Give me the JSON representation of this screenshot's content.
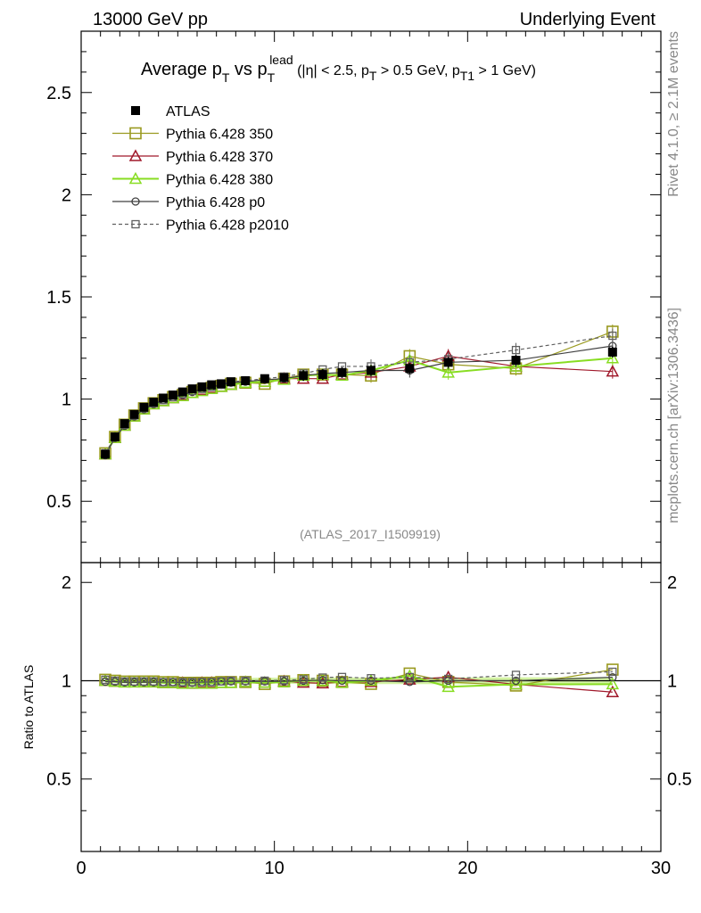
{
  "header": {
    "left": "13000 GeV pp",
    "right": "Underlying Event"
  },
  "side_labels": {
    "rivet": "Rivet 4.1.0, ≥ 2.1M events",
    "mcplots": "mcplots.cern.ch [arXiv:1306.3436]"
  },
  "title": {
    "main": "Average p",
    "main_sub": "T",
    "vs": " vs p",
    "vs_sub": "T",
    "vs_sup": "lead",
    "cuts_a": " (|η| < 2.5, p",
    "cuts_a_sub": "T",
    "cuts_b": " > 0.5 GeV, p",
    "cuts_b_sub": "T1",
    "cuts_c": " > 1 GeV)"
  },
  "analysis_id": "(ATLAS_2017_I1509919)",
  "ratio_ylabel": "Ratio to ATLAS",
  "legend": [
    {
      "label": "ATLAS",
      "key": "atlas"
    },
    {
      "label": "Pythia 6.428 350",
      "key": "p350"
    },
    {
      "label": "Pythia 6.428 370",
      "key": "p370"
    },
    {
      "label": "Pythia 6.428 380",
      "key": "p380"
    },
    {
      "label": "Pythia 6.428 p0",
      "key": "p0"
    },
    {
      "label": "Pythia 6.428 p2010",
      "key": "p2010"
    }
  ],
  "colors": {
    "atlas": "#000000",
    "p350": "#9a9a20",
    "p370": "#a0182a",
    "p380": "#88dd22",
    "p0": "#404040",
    "p2010": "#606060",
    "band": "#c8f08c"
  },
  "chart_data": {
    "type": "line",
    "xlim": [
      0,
      30
    ],
    "ylim_main": [
      0.2,
      2.8
    ],
    "ylim_ratio": [
      0.3,
      2.3
    ],
    "x_ticks": [
      "0",
      "10",
      "20",
      "30"
    ],
    "y_ticks_main": [
      "0.5",
      "1",
      "1.5",
      "2",
      "2.5"
    ],
    "y_ticks_ratio": [
      "0.5",
      "1",
      "2"
    ],
    "x": [
      1.25,
      1.75,
      2.25,
      2.75,
      3.25,
      3.75,
      4.25,
      4.75,
      5.25,
      5.75,
      6.25,
      6.75,
      7.25,
      7.75,
      8.5,
      9.5,
      10.5,
      11.5,
      12.5,
      13.5,
      15,
      17,
      19,
      22.5,
      27.5
    ],
    "series": [
      {
        "name": "ATLAS",
        "key": "atlas",
        "values": [
          0.73,
          0.815,
          0.88,
          0.925,
          0.96,
          0.985,
          1.005,
          1.02,
          1.035,
          1.05,
          1.06,
          1.07,
          1.075,
          1.085,
          1.09,
          1.1,
          1.105,
          1.115,
          1.12,
          1.13,
          1.14,
          1.15,
          1.18,
          1.19,
          1.23
        ]
      },
      {
        "name": "Pythia 6.428 350",
        "key": "p350",
        "values": [
          0.735,
          0.815,
          0.875,
          0.92,
          0.955,
          0.98,
          0.995,
          1.01,
          1.02,
          1.035,
          1.045,
          1.055,
          1.065,
          1.075,
          1.08,
          1.075,
          1.1,
          1.12,
          1.12,
          1.12,
          1.115,
          1.21,
          1.17,
          1.15,
          1.33
        ]
      },
      {
        "name": "Pythia 6.428 370",
        "key": "p370",
        "values": [
          0.73,
          0.81,
          0.87,
          0.915,
          0.95,
          0.975,
          0.99,
          1.005,
          1.02,
          1.03,
          1.045,
          1.055,
          1.06,
          1.07,
          1.08,
          1.085,
          1.1,
          1.1,
          1.1,
          1.12,
          1.13,
          1.16,
          1.21,
          1.16,
          1.135
        ]
      },
      {
        "name": "Pythia 6.428 380",
        "key": "p380",
        "values": [
          0.73,
          0.81,
          0.87,
          0.915,
          0.95,
          0.975,
          0.99,
          1.005,
          1.015,
          1.03,
          1.04,
          1.05,
          1.06,
          1.07,
          1.08,
          1.085,
          1.095,
          1.115,
          1.12,
          1.115,
          1.14,
          1.19,
          1.13,
          1.16,
          1.2
        ]
      },
      {
        "name": "Pythia 6.428 p0",
        "key": "p0",
        "values": [
          0.725,
          0.81,
          0.87,
          0.915,
          0.95,
          0.975,
          0.995,
          1.01,
          1.02,
          1.035,
          1.05,
          1.06,
          1.07,
          1.08,
          1.085,
          1.095,
          1.1,
          1.115,
          1.125,
          1.13,
          1.14,
          1.14,
          1.18,
          1.19,
          1.26
        ]
      },
      {
        "name": "Pythia 6.428 p2010",
        "key": "p2010",
        "values": [
          0.735,
          0.815,
          0.875,
          0.92,
          0.955,
          0.98,
          0.995,
          1.01,
          1.025,
          1.04,
          1.05,
          1.06,
          1.07,
          1.085,
          1.09,
          1.1,
          1.11,
          1.125,
          1.145,
          1.16,
          1.16,
          1.18,
          1.195,
          1.24,
          1.31
        ]
      }
    ]
  }
}
